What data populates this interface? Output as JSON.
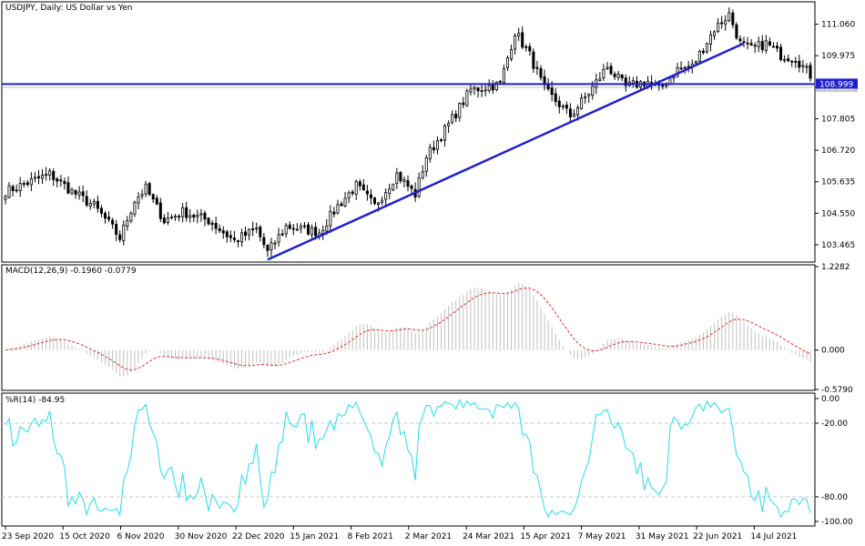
{
  "instrument": {
    "symbol": "USDJPY",
    "timeframe": "Daily",
    "description": "US Dollar vs Yen",
    "title_text": "USDJPY, Daily:  US Dollar vs Yen"
  },
  "colors": {
    "bull": "#000000",
    "bear": "#000000",
    "trendline": "#1f1fd0",
    "support": "#1f1fd0",
    "macd_hist": "#c0c0c0",
    "macd_signal": "#e03030",
    "wpr": "#22ddee",
    "grid": "#c8c8c8"
  },
  "chart_data": [
    {
      "type": "candlestick",
      "panel": "price",
      "ylim": [
        102.9,
        111.8
      ],
      "y_ticks": [
        "111.060",
        "109.975",
        "108.885",
        "107.805",
        "106.720",
        "105.635",
        "104.550",
        "103.465"
      ],
      "x_ticks": [
        "23 Sep 2020",
        "15 Oct 2020",
        "6 Nov 2020",
        "30 Nov 2020",
        "22 Dec 2020",
        "15 Jan 2021",
        "8 Feb 2021",
        "2 Mar 2021",
        "24 Mar 2021",
        "15 Apr 2021",
        "7 May 2021",
        "31 May 2021",
        "22 Jun 2021",
        "14 Jul 2021"
      ],
      "anchors": [
        [
          0,
          105.3
        ],
        [
          8,
          105.7
        ],
        [
          12,
          105.9
        ],
        [
          18,
          105.3
        ],
        [
          24,
          104.8
        ],
        [
          28,
          104.2
        ],
        [
          31,
          103.7
        ],
        [
          35,
          105.0
        ],
        [
          38,
          105.4
        ],
        [
          43,
          104.3
        ],
        [
          48,
          104.6
        ],
        [
          55,
          104.3
        ],
        [
          62,
          103.6
        ],
        [
          68,
          104.0
        ],
        [
          71,
          103.2
        ],
        [
          76,
          104.1
        ],
        [
          85,
          103.9
        ],
        [
          90,
          104.8
        ],
        [
          95,
          105.5
        ],
        [
          100,
          104.8
        ],
        [
          106,
          105.9
        ],
        [
          111,
          105.2
        ],
        [
          114,
          106.5
        ],
        [
          120,
          107.6
        ],
        [
          126,
          108.8
        ],
        [
          134,
          109.0
        ],
        [
          138,
          110.8
        ],
        [
          142,
          110.0
        ],
        [
          146,
          108.8
        ],
        [
          150,
          108.3
        ],
        [
          153,
          107.9
        ],
        [
          158,
          108.7
        ],
        [
          163,
          109.6
        ],
        [
          168,
          108.9
        ],
        [
          174,
          109.1
        ],
        [
          177,
          108.8
        ],
        [
          182,
          109.5
        ],
        [
          186,
          109.6
        ],
        [
          192,
          110.9
        ],
        [
          196,
          111.4
        ],
        [
          199,
          110.4
        ],
        [
          202,
          110.2
        ],
        [
          206,
          110.4
        ],
        [
          210,
          110.0
        ],
        [
          214,
          109.9
        ],
        [
          218,
          109.3
        ]
      ],
      "current_price": "108.885",
      "support_level": 108.999,
      "support_label": "108.999",
      "trendline": [
        [
          71,
          102.95
        ],
        [
          200,
          110.4
        ]
      ]
    },
    {
      "type": "histogram+line",
      "panel": "macd",
      "name": "MACD(12,26,9)",
      "values_label": "-0.1960 -0.0779",
      "ylim": [
        -0.579,
        1.2282
      ],
      "y_ticks": [
        "1.2282",
        "0.000",
        "-0.5790"
      ]
    },
    {
      "type": "line",
      "panel": "wpr",
      "name": "%R(14)",
      "values_label": "-84.95",
      "ylim": [
        -100,
        0
      ],
      "y_ticks": [
        "0.00",
        "-20.00",
        "-80.00",
        "-100.00"
      ],
      "levels": [
        -20,
        -80
      ]
    }
  ]
}
